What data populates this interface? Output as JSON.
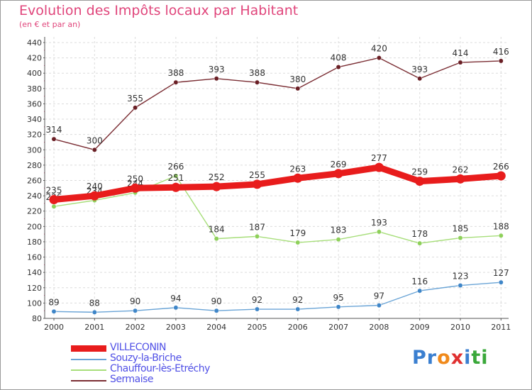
{
  "title": "Evolution des Impôts locaux par Habitant",
  "subtitle": "(en € et par an)",
  "logo": {
    "text": "Proxiti",
    "letters": [
      "P",
      "r",
      "o",
      "x",
      "i",
      "t",
      "i"
    ],
    "colors": [
      "#3a7fd0",
      "#3a7fd0",
      "#f08a1c",
      "#e03030",
      "#3a7fd0",
      "#3aa83a",
      "#3aa83a"
    ]
  },
  "chart_data": {
    "type": "line",
    "title": "Evolution des Impôts locaux par Habitant",
    "subtitle": "(en € et par an)",
    "xlabel": "",
    "ylabel": "",
    "ylim": [
      80,
      440
    ],
    "ytick_step": 20,
    "yticks": [
      "80",
      "100",
      "120",
      "140",
      "160",
      "180",
      "200",
      "220",
      "240",
      "260",
      "280",
      "300",
      "320",
      "340",
      "360",
      "380",
      "400",
      "420",
      "440"
    ],
    "grid": true,
    "legend_position": "bottom-left",
    "categories": [
      "2000",
      "2001",
      "2002",
      "2003",
      "2004",
      "2005",
      "2006",
      "2007",
      "2008",
      "2009",
      "2010",
      "2011"
    ],
    "series": [
      {
        "name": "Souzy-la-Briche",
        "color": "#6aa4d6",
        "dot_color": "#3f86c8",
        "highlight": false,
        "values": [
          89,
          88,
          90,
          94,
          90,
          92,
          92,
          95,
          97,
          116,
          123,
          127
        ],
        "labels": [
          "89",
          "88",
          "90",
          "94",
          "90",
          "92",
          "92",
          "95",
          "97",
          "116",
          "123",
          "127"
        ]
      },
      {
        "name": "Chauffour-lès-Etréchy",
        "color": "#a7de7a",
        "dot_color": "#8ed05a",
        "highlight": false,
        "values": [
          226,
          234,
          244,
          266,
          184,
          187,
          179,
          183,
          193,
          178,
          185,
          188
        ],
        "labels": [
          "226",
          "234",
          "244",
          "266",
          "184",
          "187",
          "179",
          "183",
          "193",
          "178",
          "185",
          "188"
        ]
      },
      {
        "name": "Sermaise",
        "color": "#7b2e34",
        "dot_color": "#6a1f25",
        "highlight": false,
        "values": [
          314,
          300,
          355,
          388,
          393,
          388,
          380,
          408,
          420,
          393,
          414,
          416
        ],
        "labels": [
          "314",
          "300",
          "355",
          "388",
          "393",
          "388",
          "380",
          "408",
          "420",
          "393",
          "414",
          "416"
        ]
      },
      {
        "name": "VILLECONIN",
        "color": "#e81c1c",
        "dot_color": "#e81c1c",
        "highlight": true,
        "values": [
          235,
          240,
          250,
          251,
          252,
          255,
          263,
          269,
          277,
          259,
          262,
          266
        ],
        "labels": [
          "235",
          "240",
          "250",
          "251",
          "252",
          "255",
          "263",
          "269",
          "277",
          "259",
          "262",
          "266"
        ]
      }
    ],
    "legend_order": [
      "VILLECONIN",
      "Souzy-la-Briche",
      "Chauffour-lès-Etréchy",
      "Sermaise"
    ]
  },
  "legend": [
    {
      "name": "VILLECONIN",
      "color": "#e81c1c",
      "thick": true
    },
    {
      "name": "Souzy-la-Briche",
      "color": "#6aa4d6",
      "thick": false
    },
    {
      "name": "Chauffour-lès-Etréchy",
      "color": "#a7de7a",
      "thick": false
    },
    {
      "name": "Sermaise",
      "color": "#7b2e34",
      "thick": false
    }
  ]
}
